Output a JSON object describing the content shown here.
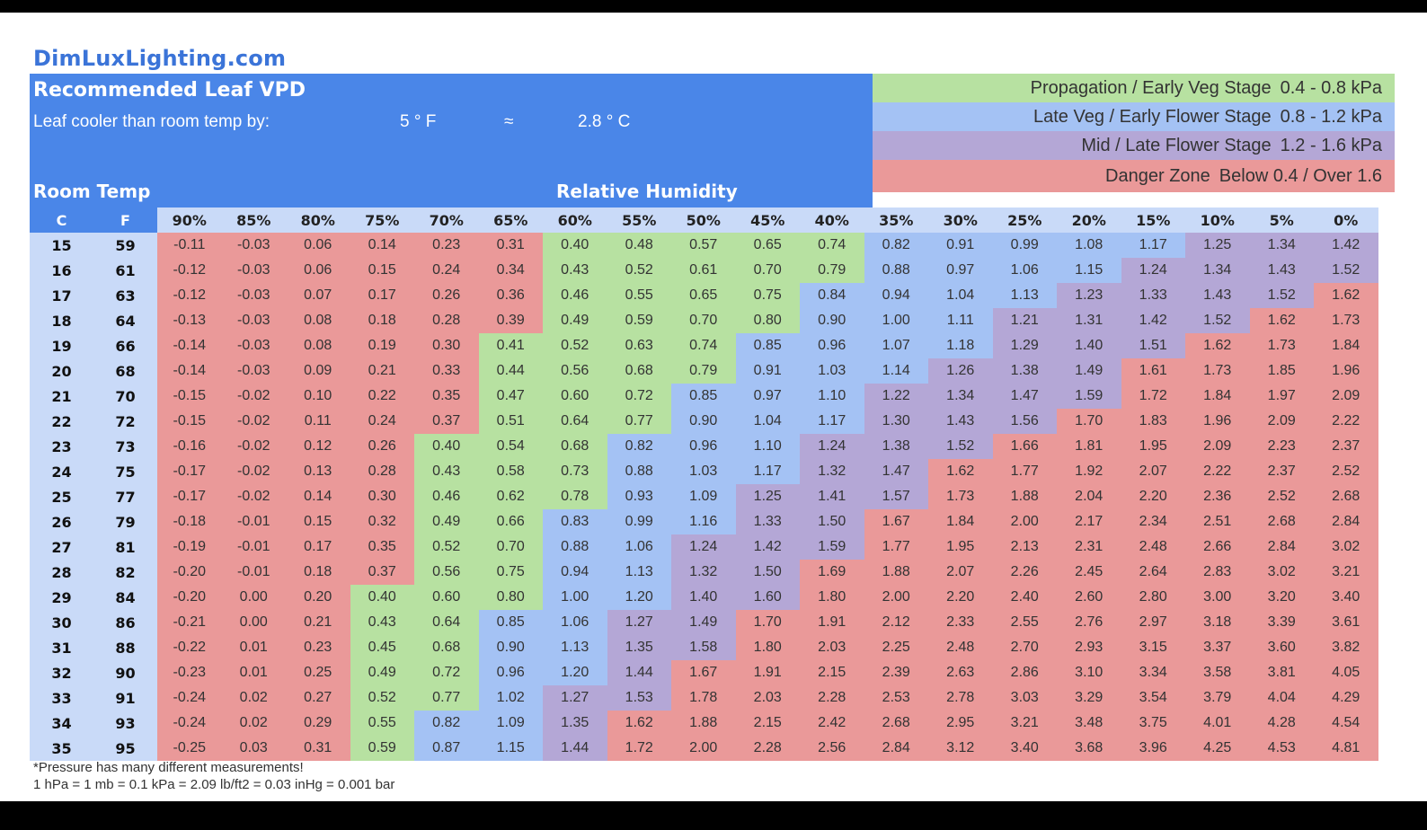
{
  "site": "DimLuxLighting.com",
  "title": "Recommended Leaf VPD",
  "cooler": {
    "label": "Leaf cooler than room temp by:",
    "f": "5 ° F",
    "approx": "≈",
    "c": "2.8 ° C"
  },
  "room_temp_label": "Room Temp",
  "rh_label": "Relative Humidity",
  "colors": {
    "header_blue": "#4a86e8",
    "green": "#b7e1a1",
    "blue": "#a4c2f4",
    "purple": "#b4a7d6",
    "red": "#ea9999",
    "light_blue": "#c9daf8"
  },
  "legend": [
    {
      "stage": "Propagation / Early Veg Stage",
      "range": "0.4 - 0.8 kPa",
      "color": "#b7e1a1"
    },
    {
      "stage": "Late Veg / Early Flower Stage",
      "range": "0.8 - 1.2 kPa",
      "color": "#a4c2f4"
    },
    {
      "stage": "Mid / Late Flower Stage",
      "range": "1.2 - 1.6 kPa",
      "color": "#b4a7d6"
    },
    {
      "stage": "Danger Zone",
      "range": "Below 0.4 / Over 1.6",
      "color": "#ea9999"
    }
  ],
  "notes": {
    "line1": "*Pressure has many different measurements!",
    "line2": "1 hPa = 1 mb = 0.1 kPa = 2.09 lb/ft2 = 0.03 inHg = 0.001 bar"
  },
  "chart_data": {
    "type": "table",
    "title": "Recommended Leaf VPD",
    "temp_headers": [
      "C",
      "F"
    ],
    "rh_columns": [
      "90%",
      "85%",
      "80%",
      "75%",
      "70%",
      "65%",
      "60%",
      "55%",
      "50%",
      "45%",
      "40%",
      "35%",
      "30%",
      "25%",
      "20%",
      "15%",
      "10%",
      "5%",
      "0%"
    ],
    "rows": [
      {
        "c": "15",
        "f": "59",
        "v": [
          "-0.11",
          "-0.03",
          "0.06",
          "0.14",
          "0.23",
          "0.31",
          "0.40",
          "0.48",
          "0.57",
          "0.65",
          "0.74",
          "0.82",
          "0.91",
          "0.99",
          "1.08",
          "1.17",
          "1.25",
          "1.34",
          "1.42"
        ]
      },
      {
        "c": "16",
        "f": "61",
        "v": [
          "-0.12",
          "-0.03",
          "0.06",
          "0.15",
          "0.24",
          "0.34",
          "0.43",
          "0.52",
          "0.61",
          "0.70",
          "0.79",
          "0.88",
          "0.97",
          "1.06",
          "1.15",
          "1.24",
          "1.34",
          "1.43",
          "1.52"
        ]
      },
      {
        "c": "17",
        "f": "63",
        "v": [
          "-0.12",
          "-0.03",
          "0.07",
          "0.17",
          "0.26",
          "0.36",
          "0.46",
          "0.55",
          "0.65",
          "0.75",
          "0.84",
          "0.94",
          "1.04",
          "1.13",
          "1.23",
          "1.33",
          "1.43",
          "1.52",
          "1.62"
        ]
      },
      {
        "c": "18",
        "f": "64",
        "v": [
          "-0.13",
          "-0.03",
          "0.08",
          "0.18",
          "0.28",
          "0.39",
          "0.49",
          "0.59",
          "0.70",
          "0.80",
          "0.90",
          "1.00",
          "1.11",
          "1.21",
          "1.31",
          "1.42",
          "1.52",
          "1.62",
          "1.73"
        ]
      },
      {
        "c": "19",
        "f": "66",
        "v": [
          "-0.14",
          "-0.03",
          "0.08",
          "0.19",
          "0.30",
          "0.41",
          "0.52",
          "0.63",
          "0.74",
          "0.85",
          "0.96",
          "1.07",
          "1.18",
          "1.29",
          "1.40",
          "1.51",
          "1.62",
          "1.73",
          "1.84"
        ]
      },
      {
        "c": "20",
        "f": "68",
        "v": [
          "-0.14",
          "-0.03",
          "0.09",
          "0.21",
          "0.33",
          "0.44",
          "0.56",
          "0.68",
          "0.79",
          "0.91",
          "1.03",
          "1.14",
          "1.26",
          "1.38",
          "1.49",
          "1.61",
          "1.73",
          "1.85",
          "1.96"
        ]
      },
      {
        "c": "21",
        "f": "70",
        "v": [
          "-0.15",
          "-0.02",
          "0.10",
          "0.22",
          "0.35",
          "0.47",
          "0.60",
          "0.72",
          "0.85",
          "0.97",
          "1.10",
          "1.22",
          "1.34",
          "1.47",
          "1.59",
          "1.72",
          "1.84",
          "1.97",
          "2.09"
        ]
      },
      {
        "c": "22",
        "f": "72",
        "v": [
          "-0.15",
          "-0.02",
          "0.11",
          "0.24",
          "0.37",
          "0.51",
          "0.64",
          "0.77",
          "0.90",
          "1.04",
          "1.17",
          "1.30",
          "1.43",
          "1.56",
          "1.70",
          "1.83",
          "1.96",
          "2.09",
          "2.22"
        ]
      },
      {
        "c": "23",
        "f": "73",
        "v": [
          "-0.16",
          "-0.02",
          "0.12",
          "0.26",
          "0.40",
          "0.54",
          "0.68",
          "0.82",
          "0.96",
          "1.10",
          "1.24",
          "1.38",
          "1.52",
          "1.66",
          "1.81",
          "1.95",
          "2.09",
          "2.23",
          "2.37"
        ]
      },
      {
        "c": "24",
        "f": "75",
        "v": [
          "-0.17",
          "-0.02",
          "0.13",
          "0.28",
          "0.43",
          "0.58",
          "0.73",
          "0.88",
          "1.03",
          "1.17",
          "1.32",
          "1.47",
          "1.62",
          "1.77",
          "1.92",
          "2.07",
          "2.22",
          "2.37",
          "2.52"
        ]
      },
      {
        "c": "25",
        "f": "77",
        "v": [
          "-0.17",
          "-0.02",
          "0.14",
          "0.30",
          "0.46",
          "0.62",
          "0.78",
          "0.93",
          "1.09",
          "1.25",
          "1.41",
          "1.57",
          "1.73",
          "1.88",
          "2.04",
          "2.20",
          "2.36",
          "2.52",
          "2.68"
        ]
      },
      {
        "c": "26",
        "f": "79",
        "v": [
          "-0.18",
          "-0.01",
          "0.15",
          "0.32",
          "0.49",
          "0.66",
          "0.83",
          "0.99",
          "1.16",
          "1.33",
          "1.50",
          "1.67",
          "1.84",
          "2.00",
          "2.17",
          "2.34",
          "2.51",
          "2.68",
          "2.84"
        ]
      },
      {
        "c": "27",
        "f": "81",
        "v": [
          "-0.19",
          "-0.01",
          "0.17",
          "0.35",
          "0.52",
          "0.70",
          "0.88",
          "1.06",
          "1.24",
          "1.42",
          "1.59",
          "1.77",
          "1.95",
          "2.13",
          "2.31",
          "2.48",
          "2.66",
          "2.84",
          "3.02"
        ]
      },
      {
        "c": "28",
        "f": "82",
        "v": [
          "-0.20",
          "-0.01",
          "0.18",
          "0.37",
          "0.56",
          "0.75",
          "0.94",
          "1.13",
          "1.32",
          "1.50",
          "1.69",
          "1.88",
          "2.07",
          "2.26",
          "2.45",
          "2.64",
          "2.83",
          "3.02",
          "3.21"
        ]
      },
      {
        "c": "29",
        "f": "84",
        "v": [
          "-0.20",
          "0.00",
          "0.20",
          "0.40",
          "0.60",
          "0.80",
          "1.00",
          "1.20",
          "1.40",
          "1.60",
          "1.80",
          "2.00",
          "2.20",
          "2.40",
          "2.60",
          "2.80",
          "3.00",
          "3.20",
          "3.40"
        ]
      },
      {
        "c": "30",
        "f": "86",
        "v": [
          "-0.21",
          "0.00",
          "0.21",
          "0.43",
          "0.64",
          "0.85",
          "1.06",
          "1.27",
          "1.49",
          "1.70",
          "1.91",
          "2.12",
          "2.33",
          "2.55",
          "2.76",
          "2.97",
          "3.18",
          "3.39",
          "3.61"
        ]
      },
      {
        "c": "31",
        "f": "88",
        "v": [
          "-0.22",
          "0.01",
          "0.23",
          "0.45",
          "0.68",
          "0.90",
          "1.13",
          "1.35",
          "1.58",
          "1.80",
          "2.03",
          "2.25",
          "2.48",
          "2.70",
          "2.93",
          "3.15",
          "3.37",
          "3.60",
          "3.82"
        ]
      },
      {
        "c": "32",
        "f": "90",
        "v": [
          "-0.23",
          "0.01",
          "0.25",
          "0.49",
          "0.72",
          "0.96",
          "1.20",
          "1.44",
          "1.67",
          "1.91",
          "2.15",
          "2.39",
          "2.63",
          "2.86",
          "3.10",
          "3.34",
          "3.58",
          "3.81",
          "4.05"
        ]
      },
      {
        "c": "33",
        "f": "91",
        "v": [
          "-0.24",
          "0.02",
          "0.27",
          "0.52",
          "0.77",
          "1.02",
          "1.27",
          "1.53",
          "1.78",
          "2.03",
          "2.28",
          "2.53",
          "2.78",
          "3.03",
          "3.29",
          "3.54",
          "3.79",
          "4.04",
          "4.29"
        ]
      },
      {
        "c": "34",
        "f": "93",
        "v": [
          "-0.24",
          "0.02",
          "0.29",
          "0.55",
          "0.82",
          "1.09",
          "1.35",
          "1.62",
          "1.88",
          "2.15",
          "2.42",
          "2.68",
          "2.95",
          "3.21",
          "3.48",
          "3.75",
          "4.01",
          "4.28",
          "4.54"
        ]
      },
      {
        "c": "35",
        "f": "95",
        "v": [
          "-0.25",
          "0.03",
          "0.31",
          "0.59",
          "0.87",
          "1.15",
          "1.44",
          "1.72",
          "2.00",
          "2.28",
          "2.56",
          "2.84",
          "3.12",
          "3.40",
          "3.68",
          "3.96",
          "4.25",
          "4.53",
          "4.81"
        ]
      }
    ]
  }
}
